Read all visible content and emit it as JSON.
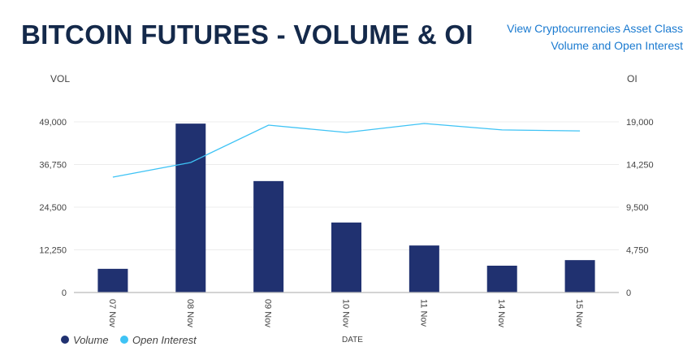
{
  "header": {
    "title": "BITCOIN FUTURES - VOLUME & OI",
    "link_line1": "View Cryptocurrencies Asset Class",
    "link_line2": "Volume and Open Interest"
  },
  "colors": {
    "volume": "#203170",
    "open_interest": "#3ec3f5",
    "title": "#14294a",
    "link": "#1a7ad0"
  },
  "chart_data": {
    "type": "bar",
    "title": "BITCOIN FUTURES - VOLUME & OI",
    "xlabel": "DATE",
    "ylabel": "VOL",
    "y2label": "OI",
    "categories": [
      "07 Nov",
      "08 Nov",
      "09 Nov",
      "10 Nov",
      "11 Nov",
      "14 Nov",
      "15 Nov"
    ],
    "ylim": [
      0,
      49000
    ],
    "y2lim": [
      0,
      19000
    ],
    "yticks": [
      "0",
      "12,250",
      "24,500",
      "36,750",
      "49,000"
    ],
    "y2ticks": [
      "0",
      "4,750",
      "9,500",
      "14,250",
      "19,000"
    ],
    "grid": true,
    "legend_position": "bottom-left",
    "series": [
      {
        "name": "Volume",
        "type": "bar",
        "axis": "left",
        "values": [
          6800,
          48500,
          32000,
          20100,
          13500,
          7700,
          9300
        ]
      },
      {
        "name": "Open Interest",
        "type": "line",
        "axis": "right",
        "values": [
          12850,
          14480,
          18640,
          17820,
          18820,
          18100,
          18000
        ]
      }
    ]
  }
}
